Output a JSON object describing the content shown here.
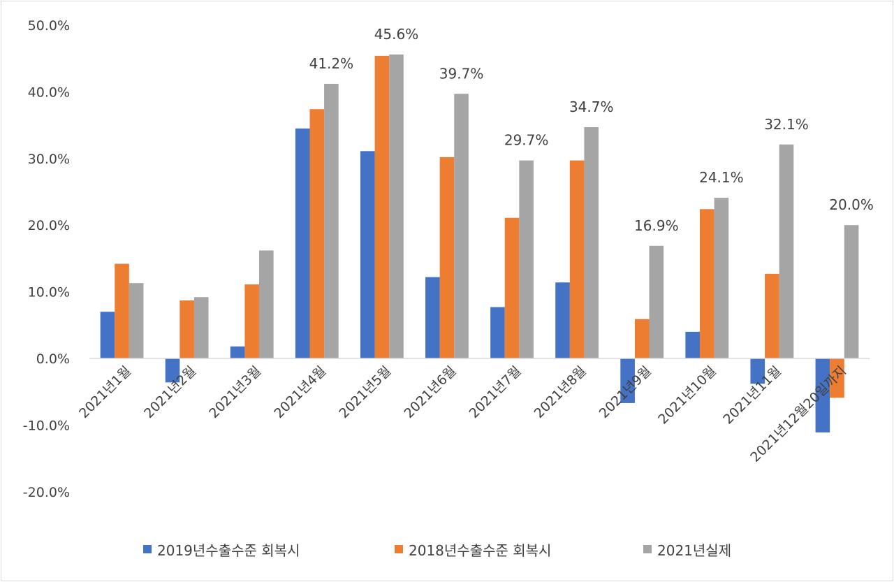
{
  "chart_data": {
    "type": "bar",
    "title": "",
    "xlabel": "",
    "ylabel": "",
    "ylim": [
      -20,
      50
    ],
    "yticks": [
      "-20.0%",
      "-10.0%",
      "0.0%",
      "10.0%",
      "20.0%",
      "30.0%",
      "40.0%",
      "50.0%"
    ],
    "grid": false,
    "legend_position": "bottom",
    "categories": [
      "2021년1월",
      "2021년2월",
      "2021년3월",
      "2021년4월",
      "2021년5월",
      "2021년6월",
      "2021년7월",
      "2021년8월",
      "2021년9월",
      "2021년10월",
      "2021년11월",
      "2021년12월20일까지"
    ],
    "series": [
      {
        "name": "2019년수출수준 회복시",
        "color": "#4472c4",
        "values": [
          7.0,
          -3.6,
          1.8,
          34.5,
          31.1,
          12.2,
          7.7,
          11.4,
          -6.7,
          4.0,
          -3.8,
          -11.1
        ]
      },
      {
        "name": "2018년수출수준 회복시",
        "color": "#ed7d31",
        "values": [
          14.2,
          8.7,
          11.1,
          37.4,
          45.4,
          30.2,
          21.1,
          29.7,
          5.9,
          22.4,
          12.7,
          -5.9
        ]
      },
      {
        "name": "2021년실제",
        "color": "#a5a5a5",
        "values": [
          11.3,
          9.2,
          16.2,
          41.2,
          45.6,
          39.7,
          29.7,
          34.7,
          16.9,
          24.1,
          32.1,
          20.0
        ]
      }
    ],
    "data_labels": {
      "series": "2021년실제",
      "labels": [
        "",
        "",
        "",
        "41.2%",
        "45.6%",
        "39.7%",
        "29.7%",
        "34.7%",
        "16.9%",
        "24.1%",
        "32.1%",
        "20.0%"
      ]
    }
  }
}
